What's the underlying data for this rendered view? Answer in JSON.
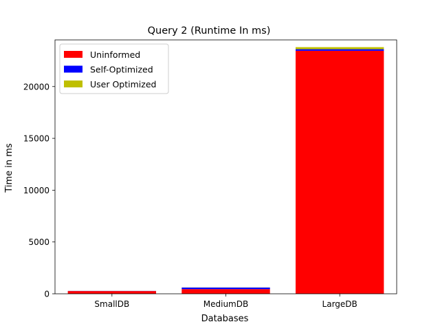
{
  "chart_data": {
    "type": "bar",
    "stacked": true,
    "title": "Query 2 (Runtime In ms)",
    "xlabel": "Databases",
    "ylabel": "Time in ms",
    "categories": [
      "SmallDB",
      "MediumDB",
      "LargeDB"
    ],
    "series": [
      {
        "name": "Uninformed",
        "color": "#ff0000",
        "values": [
          260,
          450,
          23450
        ]
      },
      {
        "name": "Self-Optimized",
        "color": "#0000ff",
        "values": [
          15,
          150,
          150
        ]
      },
      {
        "name": "User Optimized",
        "color": "#bfbf00",
        "values": [
          5,
          10,
          200
        ]
      }
    ],
    "ylim": [
      0,
      24500
    ],
    "yticks": [
      0,
      5000,
      10000,
      15000,
      20000
    ],
    "legend": "top-left",
    "grid": false
  }
}
